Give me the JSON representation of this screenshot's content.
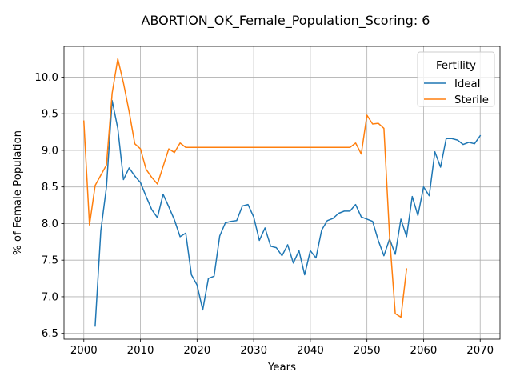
{
  "chart_data": {
    "type": "line",
    "title": "ABORTION_OK_Female_Population_Scoring: 6",
    "xlabel": "Years",
    "ylabel": "% of Female Population",
    "xlim": [
      1996.5,
      2073.5
    ],
    "ylim": [
      6.42,
      10.42
    ],
    "xticks": [
      2000,
      2010,
      2020,
      2030,
      2040,
      2050,
      2060,
      2070
    ],
    "xtick_labels": [
      "2000",
      "2010",
      "2020",
      "2030",
      "2040",
      "2050",
      "2060",
      "2070"
    ],
    "yticks": [
      6.5,
      7.0,
      7.5,
      8.0,
      8.5,
      9.0,
      9.5,
      10.0
    ],
    "ytick_labels": [
      "6.5",
      "7.0",
      "7.5",
      "8.0",
      "8.5",
      "9.0",
      "9.5",
      "10.0"
    ],
    "grid": true,
    "legend": {
      "title": "Fertility",
      "placement": "top-right"
    },
    "series": [
      {
        "name": "Ideal",
        "color": "#1f77b4",
        "x": [
          2002,
          2003,
          2004,
          2005,
          2006,
          2007,
          2008,
          2009,
          2010,
          2011,
          2012,
          2013,
          2014,
          2015,
          2016,
          2017,
          2018,
          2019,
          2020,
          2021,
          2022,
          2023,
          2024,
          2025,
          2026,
          2027,
          2028,
          2029,
          2030,
          2031,
          2032,
          2033,
          2034,
          2035,
          2036,
          2037,
          2038,
          2039,
          2040,
          2041,
          2042,
          2043,
          2044,
          2045,
          2046,
          2047,
          2048,
          2049,
          2050,
          2051,
          2052,
          2053,
          2054,
          2055,
          2056,
          2057,
          2058,
          2059,
          2060,
          2061,
          2062,
          2063,
          2064,
          2065,
          2066,
          2067,
          2068,
          2069,
          2070
        ],
        "y": [
          6.6,
          7.9,
          8.5,
          9.68,
          9.3,
          8.6,
          8.76,
          8.65,
          8.56,
          8.37,
          8.19,
          8.08,
          8.4,
          8.23,
          8.05,
          7.82,
          7.87,
          7.3,
          7.16,
          6.82,
          7.25,
          7.28,
          7.83,
          8.01,
          8.03,
          8.04,
          8.24,
          8.26,
          8.09,
          7.77,
          7.94,
          7.69,
          7.67,
          7.56,
          7.71,
          7.46,
          7.63,
          7.3,
          7.63,
          7.53,
          7.91,
          8.04,
          8.07,
          8.14,
          8.17,
          8.17,
          8.26,
          8.09,
          8.06,
          8.03,
          7.77,
          7.56,
          7.79,
          7.58,
          8.06,
          7.82,
          8.37,
          8.11,
          8.5,
          8.38,
          8.98,
          8.77,
          9.16,
          9.16,
          9.14,
          9.08,
          9.11,
          9.09,
          9.2
        ]
      },
      {
        "name": "Sterile",
        "color": "#ff7f0e",
        "x": [
          2000,
          2001,
          2002,
          2003,
          2004,
          2005,
          2006,
          2007,
          2008,
          2009,
          2010,
          2011,
          2012,
          2013,
          2014,
          2015,
          2016,
          2017,
          2018,
          2019,
          2020,
          2021,
          2022,
          2023,
          2024,
          2025,
          2026,
          2027,
          2028,
          2029,
          2030,
          2031,
          2032,
          2033,
          2034,
          2035,
          2036,
          2037,
          2038,
          2039,
          2040,
          2041,
          2042,
          2043,
          2044,
          2045,
          2046,
          2047,
          2048,
          2049,
          2050,
          2051,
          2052,
          2053,
          2054,
          2055,
          2056,
          2057
        ],
        "y": [
          9.4,
          7.98,
          8.52,
          8.66,
          8.8,
          9.78,
          10.25,
          9.92,
          9.53,
          9.09,
          9.02,
          8.74,
          8.63,
          8.54,
          8.78,
          9.02,
          8.97,
          9.1,
          9.04,
          9.04,
          9.04,
          9.04,
          9.04,
          9.04,
          9.04,
          9.04,
          9.04,
          9.04,
          9.04,
          9.04,
          9.04,
          9.04,
          9.04,
          9.04,
          9.04,
          9.04,
          9.04,
          9.04,
          9.04,
          9.04,
          9.04,
          9.04,
          9.04,
          9.04,
          9.04,
          9.04,
          9.04,
          9.04,
          9.1,
          8.95,
          9.48,
          9.36,
          9.37,
          9.3,
          7.82,
          6.77,
          6.72,
          7.38
        ]
      }
    ]
  }
}
